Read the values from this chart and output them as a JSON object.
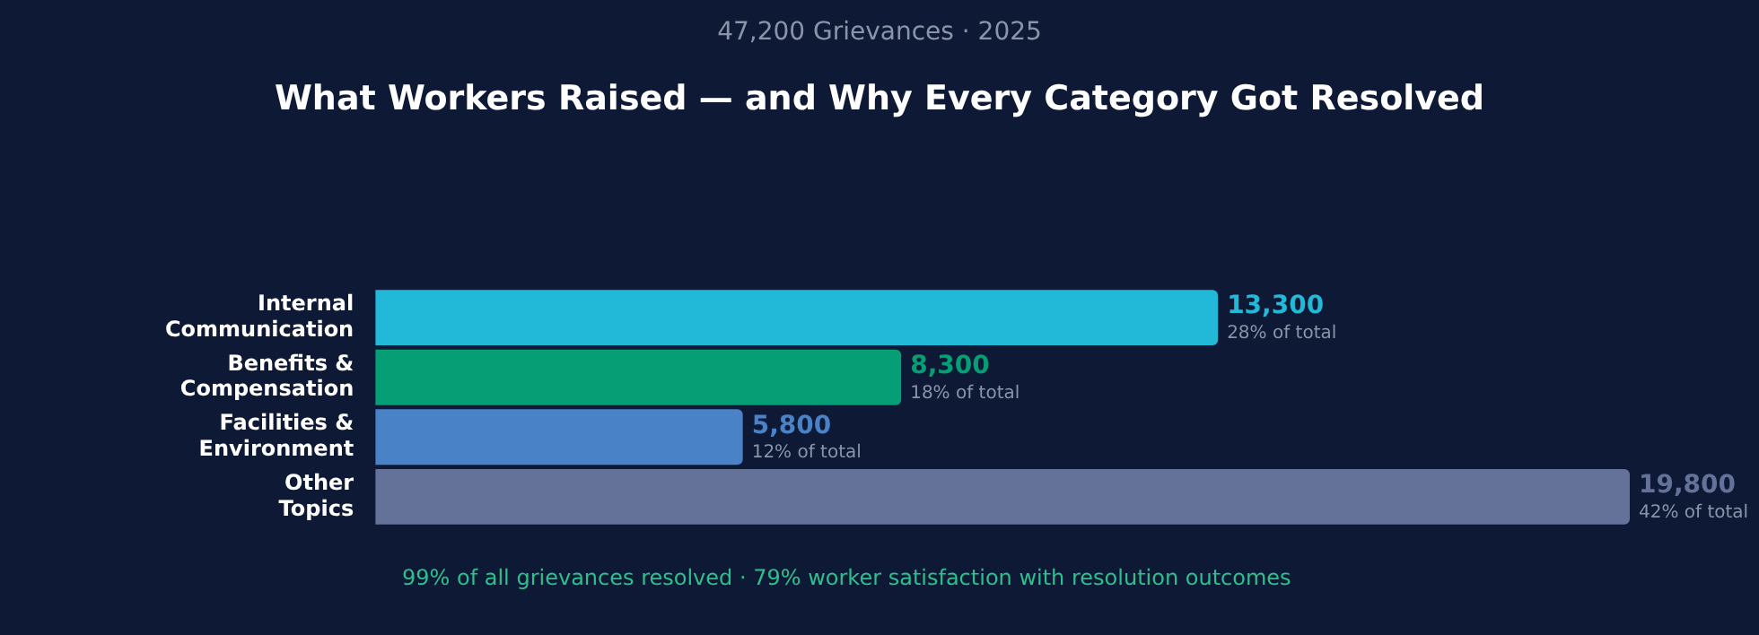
{
  "chart_data": {
    "type": "bar",
    "orientation": "horizontal",
    "title": "What Workers Raised — and Why Every Category Got Resolved",
    "subtitle": "47,200 Grievances  ·  2025",
    "categories": [
      "Internal Communication",
      "Benefits & Compensation",
      "Facilities & Environment",
      "Other Topics"
    ],
    "values": [
      13300,
      8300,
      5800,
      19800
    ],
    "colors": [
      "#22b8d8",
      "#069e75",
      "#4a82c8",
      "#64729a"
    ],
    "value_labels": [
      "13,300",
      "8,300",
      "5,800",
      "19,800"
    ],
    "xlim": [
      0,
      19800
    ],
    "tick_labels": "y",
    "annotations": [
      {
        "text": "28% of total",
        "x": 13300,
        "y": "Internal Communication"
      },
      {
        "text": "18% of total",
        "x": 8300,
        "y": "Benefits & Compensation"
      },
      {
        "text": "12% of total",
        "x": 5800,
        "y": "Facilities & Environment"
      },
      {
        "text": "42% of total",
        "x": 19800,
        "y": "Other Topics"
      },
      "99% of all grievances resolved  ·  79% worker satisfaction with resolution outcomes"
    ]
  }
}
